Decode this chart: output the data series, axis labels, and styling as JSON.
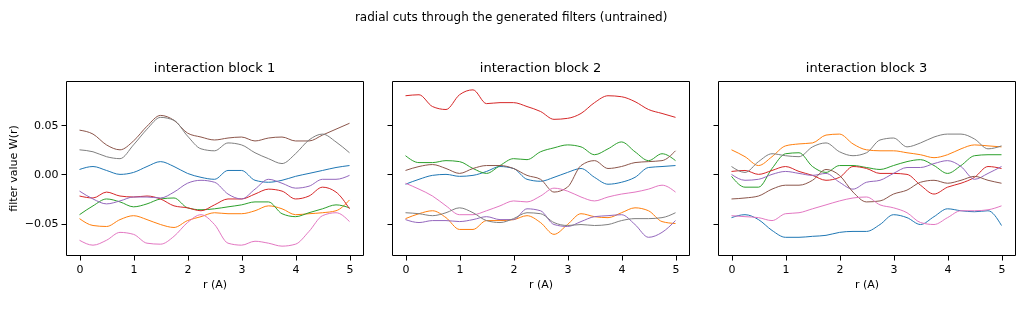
{
  "chart_data": [
    {
      "type": "line",
      "title": "interaction block 1",
      "annotations": [
        "radial cuts through the generated filters (untrained)"
      ],
      "xlabel": "r (A)",
      "ylabel": "filter value W(r)",
      "grid": false,
      "marker": "none",
      "line_style": "solid",
      "xlim": [
        -0.25,
        5.25
      ],
      "xticks": [
        0,
        1,
        2,
        3,
        4,
        5
      ],
      "ylim": [
        -0.082,
        0.095
      ],
      "yticks": [
        {
          "value": -0.05,
          "label": "−0.05"
        },
        {
          "value": 0,
          "label": "0.00"
        },
        {
          "value": 0.05,
          "label": "0.05"
        }
      ],
      "x": [
        0,
        0.25,
        0.5,
        0.75,
        1,
        1.25,
        1.5,
        1.75,
        2,
        2.25,
        2.5,
        2.75,
        3,
        3.25,
        3.5,
        3.75,
        4,
        4.25,
        4.5,
        4.75,
        5
      ],
      "series": [
        {
          "color": "#1f77b4",
          "values": [
            0.005,
            0.008,
            0.004,
            0.0,
            0.002,
            0.008,
            0.013,
            0.008,
            0.001,
            -0.003,
            -0.005,
            0.004,
            0.004,
            -0.006,
            -0.008,
            -0.006,
            -0.002,
            0.001,
            0.004,
            0.007,
            0.009
          ]
        },
        {
          "color": "#ff7f0e",
          "values": [
            -0.045,
            -0.052,
            -0.053,
            -0.046,
            -0.042,
            -0.046,
            -0.051,
            -0.054,
            -0.047,
            -0.043,
            -0.039,
            -0.04,
            -0.04,
            -0.037,
            -0.032,
            -0.035,
            -0.041,
            -0.04,
            -0.039,
            -0.037,
            -0.026
          ]
        },
        {
          "color": "#2ca02c",
          "values": [
            -0.041,
            -0.032,
            -0.025,
            -0.028,
            -0.033,
            -0.03,
            -0.025,
            -0.024,
            -0.034,
            -0.036,
            -0.035,
            -0.033,
            -0.031,
            -0.028,
            -0.028,
            -0.04,
            -0.043,
            -0.039,
            -0.035,
            -0.031,
            -0.034
          ]
        },
        {
          "color": "#d62728",
          "values": [
            -0.022,
            -0.024,
            -0.018,
            -0.022,
            -0.023,
            -0.022,
            -0.025,
            -0.032,
            -0.034,
            -0.037,
            -0.031,
            -0.025,
            -0.025,
            -0.02,
            -0.015,
            -0.017,
            -0.025,
            -0.022,
            -0.013,
            -0.018,
            -0.035
          ]
        },
        {
          "color": "#9467bd",
          "values": [
            -0.017,
            -0.025,
            -0.03,
            -0.027,
            -0.023,
            -0.023,
            -0.024,
            -0.018,
            -0.009,
            -0.006,
            -0.008,
            -0.02,
            -0.025,
            -0.015,
            -0.005,
            -0.009,
            -0.014,
            -0.012,
            -0.005,
            -0.005,
            -0.001
          ]
        },
        {
          "color": "#8c564b",
          "values": [
            0.045,
            0.041,
            0.03,
            0.025,
            0.034,
            0.049,
            0.06,
            0.055,
            0.042,
            0.038,
            0.035,
            0.037,
            0.038,
            0.034,
            0.037,
            0.038,
            0.034,
            0.034,
            0.04,
            0.046,
            0.052
          ]
        },
        {
          "color": "#e377c2",
          "values": [
            -0.067,
            -0.072,
            -0.067,
            -0.059,
            -0.061,
            -0.07,
            -0.071,
            -0.063,
            -0.049,
            -0.041,
            -0.051,
            -0.07,
            -0.072,
            -0.068,
            -0.07,
            -0.073,
            -0.071,
            -0.058,
            -0.042,
            -0.039,
            -0.048
          ]
        },
        {
          "color": "#7f7f7f",
          "values": [
            0.025,
            0.023,
            0.018,
            0.016,
            0.03,
            0.046,
            0.058,
            0.055,
            0.039,
            0.026,
            0.024,
            0.032,
            0.03,
            0.022,
            0.016,
            0.011,
            0.021,
            0.035,
            0.041,
            0.033,
            0.022
          ]
        }
      ]
    },
    {
      "type": "line",
      "title": "interaction block 2",
      "xlabel": "r (A)",
      "grid": false,
      "marker": "none",
      "line_style": "solid",
      "tick_labels": "x",
      "xlim": [
        -0.25,
        5.25
      ],
      "xticks": [
        0,
        1,
        2,
        3,
        4,
        5
      ],
      "ylim": [
        -0.082,
        0.095
      ],
      "yticks": [
        -0.05,
        0,
        0.05
      ],
      "x": [
        0,
        0.25,
        0.5,
        0.75,
        1,
        1.25,
        1.5,
        1.75,
        2,
        2.25,
        2.5,
        2.75,
        3,
        3.25,
        3.5,
        3.75,
        4,
        4.25,
        4.5,
        4.75,
        5
      ],
      "series": [
        {
          "color": "#1f77b4",
          "values": [
            -0.01,
            -0.005,
            -0.001,
            0.0,
            -0.002,
            -0.001,
            0.003,
            0.008,
            0.006,
            -0.005,
            -0.007,
            -0.003,
            0.002,
            0.006,
            -0.003,
            -0.01,
            -0.008,
            -0.003,
            0.007,
            0.008,
            0.009
          ]
        },
        {
          "color": "#ff7f0e",
          "values": [
            -0.045,
            -0.04,
            -0.037,
            -0.044,
            -0.056,
            -0.056,
            -0.047,
            -0.047,
            -0.046,
            -0.042,
            -0.049,
            -0.061,
            -0.051,
            -0.04,
            -0.043,
            -0.044,
            -0.039,
            -0.034,
            -0.037,
            -0.048,
            -0.05
          ]
        },
        {
          "color": "#2ca02c",
          "values": [
            0.019,
            0.012,
            0.012,
            0.014,
            0.013,
            0.006,
            0.001,
            0.009,
            0.016,
            0.015,
            0.023,
            0.027,
            0.03,
            0.028,
            0.02,
            0.026,
            0.033,
            0.023,
            0.014,
            0.021,
            0.014
          ]
        },
        {
          "color": "#d62728",
          "values": [
            0.08,
            0.081,
            0.069,
            0.066,
            0.081,
            0.086,
            0.072,
            0.073,
            0.073,
            0.069,
            0.064,
            0.056,
            0.057,
            0.062,
            0.073,
            0.08,
            0.079,
            0.074,
            0.066,
            0.062,
            0.058
          ]
        },
        {
          "color": "#9467bd",
          "values": [
            -0.046,
            -0.049,
            -0.047,
            -0.047,
            -0.048,
            -0.046,
            -0.043,
            -0.046,
            -0.046,
            -0.035,
            -0.037,
            -0.051,
            -0.053,
            -0.048,
            -0.043,
            -0.042,
            -0.041,
            -0.051,
            -0.064,
            -0.059,
            -0.047
          ]
        },
        {
          "color": "#8c564b",
          "values": [
            0.004,
            0.008,
            0.01,
            0.006,
            0.001,
            0.006,
            0.009,
            0.009,
            0.006,
            -0.001,
            -0.005,
            -0.018,
            -0.013,
            0.009,
            0.014,
            0.006,
            0.008,
            0.012,
            0.013,
            0.014,
            0.024
          ]
        },
        {
          "color": "#e377c2",
          "values": [
            -0.009,
            -0.015,
            -0.022,
            -0.032,
            -0.041,
            -0.041,
            -0.037,
            -0.032,
            -0.027,
            -0.028,
            -0.022,
            -0.014,
            -0.017,
            -0.023,
            -0.027,
            -0.023,
            -0.02,
            -0.018,
            -0.015,
            -0.011,
            -0.018
          ]
        },
        {
          "color": "#7f7f7f",
          "values": [
            -0.039,
            -0.04,
            -0.042,
            -0.039,
            -0.034,
            -0.039,
            -0.047,
            -0.049,
            -0.045,
            -0.039,
            -0.04,
            -0.049,
            -0.052,
            -0.051,
            -0.052,
            -0.051,
            -0.047,
            -0.045,
            -0.045,
            -0.044,
            -0.039
          ]
        }
      ]
    },
    {
      "type": "line",
      "title": "interaction block 3",
      "xlabel": "r (A)",
      "grid": false,
      "marker": "none",
      "line_style": "solid",
      "tick_labels": "x",
      "xlim": [
        -0.25,
        5.25
      ],
      "xticks": [
        0,
        1,
        2,
        3,
        4,
        5
      ],
      "ylim": [
        -0.082,
        0.095
      ],
      "yticks": [
        -0.05,
        0,
        0.05
      ],
      "x": [
        0,
        0.25,
        0.5,
        0.75,
        1,
        1.25,
        1.5,
        1.75,
        2,
        2.25,
        2.5,
        2.75,
        3,
        3.25,
        3.5,
        3.75,
        4,
        4.25,
        4.5,
        4.75,
        5
      ],
      "series": [
        {
          "color": "#1f77b4",
          "values": [
            -0.044,
            -0.041,
            -0.046,
            -0.057,
            -0.064,
            -0.064,
            -0.063,
            -0.062,
            -0.059,
            -0.058,
            -0.058,
            -0.051,
            -0.041,
            -0.044,
            -0.051,
            -0.043,
            -0.035,
            -0.037,
            -0.038,
            -0.037,
            -0.052
          ]
        },
        {
          "color": "#ff7f0e",
          "values": [
            0.025,
            0.018,
            0.009,
            0.018,
            0.029,
            0.031,
            0.032,
            0.04,
            0.041,
            0.031,
            0.025,
            0.024,
            0.024,
            0.022,
            0.02,
            0.017,
            0.02,
            0.026,
            0.03,
            0.029,
            0.028
          ]
        },
        {
          "color": "#2ca02c",
          "values": [
            -0.002,
            -0.013,
            -0.013,
            0.006,
            0.021,
            0.022,
            0.008,
            0.002,
            0.009,
            0.009,
            0.007,
            0.005,
            0.009,
            0.013,
            0.015,
            0.009,
            0.001,
            0.009,
            0.019,
            0.02,
            0.02
          ]
        },
        {
          "color": "#d62728",
          "values": [
            0.003,
            0.004,
            0.0,
            0.004,
            0.008,
            0.003,
            -0.001,
            -0.006,
            -0.003,
            0.008,
            0.006,
            0.001,
            0.001,
            0.0,
            -0.011,
            -0.02,
            -0.013,
            -0.009,
            -0.003,
            0.008,
            0.006
          ]
        },
        {
          "color": "#9467bd",
          "values": [
            0.0,
            -0.006,
            -0.005,
            0.0,
            0.003,
            0.001,
            -0.001,
            0.001,
            -0.008,
            -0.015,
            -0.008,
            -0.006,
            0.001,
            0.007,
            0.007,
            0.011,
            0.014,
            0.008,
            -0.005,
            0.001,
            0.008
          ]
        },
        {
          "color": "#8c564b",
          "values": [
            -0.025,
            -0.024,
            -0.022,
            -0.015,
            -0.011,
            -0.011,
            -0.006,
            0.005,
            -0.001,
            -0.018,
            -0.028,
            -0.027,
            -0.02,
            -0.016,
            -0.008,
            -0.006,
            -0.009,
            -0.006,
            -0.002,
            -0.006,
            -0.009
          ]
        },
        {
          "color": "#e377c2",
          "values": [
            -0.042,
            -0.043,
            -0.044,
            -0.047,
            -0.04,
            -0.039,
            -0.035,
            -0.031,
            -0.027,
            -0.024,
            -0.023,
            -0.031,
            -0.034,
            -0.039,
            -0.049,
            -0.051,
            -0.044,
            -0.037,
            -0.037,
            -0.036,
            -0.032
          ]
        },
        {
          "color": "#7f7f7f",
          "values": [
            0.008,
            0.002,
            0.013,
            0.021,
            0.019,
            0.018,
            0.028,
            0.032,
            0.023,
            0.019,
            0.022,
            0.035,
            0.037,
            0.028,
            0.032,
            0.038,
            0.041,
            0.041,
            0.036,
            0.026,
            0.029
          ]
        }
      ]
    }
  ]
}
